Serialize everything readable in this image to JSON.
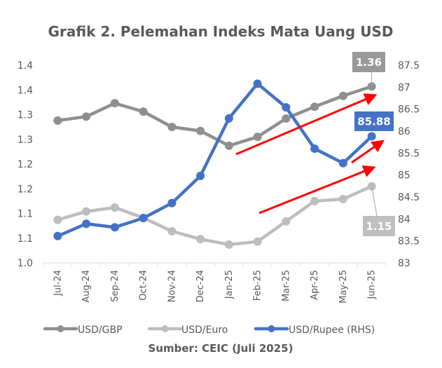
{
  "chart_data": {
    "type": "line",
    "title": "Grafik 2. Pelemahan Indeks Mata Uang USD",
    "source": "Sumber: CEIC (Juli 2025)",
    "xlabel": "",
    "ylabel": "",
    "ylabel_right": "",
    "categories": [
      "Jul-24",
      "Aug-24",
      "Sep-24",
      "Oct-24",
      "Nov-24",
      "Dec-24",
      "Jan-25",
      "Feb-25",
      "Mar-25",
      "Apr-25",
      "May-25",
      "Jun-25"
    ],
    "left_axis": {
      "ylim": [
        1.0,
        1.4
      ],
      "ticks": [
        1.0,
        1.05,
        1.1,
        1.15,
        1.2,
        1.25,
        1.3,
        1.35,
        1.4
      ],
      "tick_labels": [
        "1.0",
        "1.1",
        "1.1",
        "1.2",
        "1.2",
        "1.3",
        "1.3",
        "1.4",
        "1.4"
      ]
    },
    "right_axis": {
      "ylim": [
        83,
        87.5
      ],
      "ticks": [
        83,
        83.5,
        84,
        84.5,
        85,
        85.5,
        86,
        86.5,
        87,
        87.5
      ],
      "tick_labels": [
        "83",
        "83.5",
        "84",
        "84.5",
        "85",
        "85.5",
        "86",
        "86.5",
        "87",
        "87.5"
      ]
    },
    "grid": false,
    "legend_position": "bottom",
    "series": [
      {
        "name": "USD/GBP",
        "axis": "left",
        "color": "#8F8F8F",
        "values": [
          1.288,
          1.296,
          1.323,
          1.306,
          1.275,
          1.267,
          1.237,
          1.255,
          1.292,
          1.316,
          1.338,
          1.357
        ],
        "end_label": "1.36",
        "end_label_color": "#999999"
      },
      {
        "name": "USD/Euro",
        "axis": "left",
        "color": "#BDBDBD",
        "values": [
          1.087,
          1.104,
          1.112,
          1.091,
          1.064,
          1.048,
          1.037,
          1.043,
          1.084,
          1.125,
          1.129,
          1.155
        ],
        "end_label": "1.15",
        "end_label_color": "#BFBFBF"
      },
      {
        "name": "USD/Rupee (RHS)",
        "axis": "right",
        "color": "#4472C4",
        "values": [
          83.61,
          83.89,
          83.81,
          84.02,
          84.36,
          84.98,
          86.29,
          87.08,
          86.54,
          85.6,
          85.27,
          85.88
        ],
        "end_label": "85.88",
        "end_label_color": "#4472C4"
      }
    ],
    "annotations": [
      {
        "type": "arrow",
        "color": "#FF0000",
        "from": [
          337,
          220
        ],
        "to": [
          533,
          137
        ],
        "meaning": "GBP uptrend"
      },
      {
        "type": "arrow",
        "color": "#FF0000",
        "from": [
          502,
          232
        ],
        "to": [
          544,
          203
        ],
        "meaning": "Rupee uptrend"
      },
      {
        "type": "arrow",
        "color": "#FF0000",
        "from": [
          370,
          304
        ],
        "to": [
          531,
          240
        ],
        "meaning": "Euro uptrend"
      }
    ]
  }
}
